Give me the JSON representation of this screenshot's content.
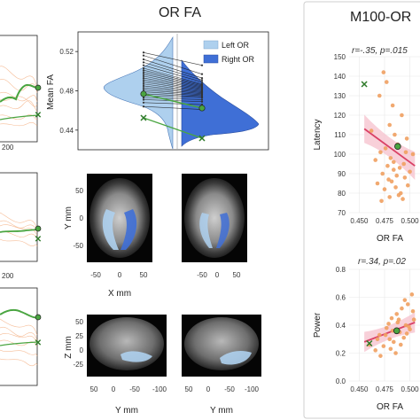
{
  "colors": {
    "left_or": "#aed0ee",
    "right_or": "#3f6fd6",
    "subject_line": "#f2a06a",
    "group_green": "#4aa541",
    "regression": "#d94066",
    "ci_band": "#f6c4d0",
    "point": "#f0a060",
    "grid": "#e8e8e8"
  },
  "left_column": {
    "tick_labels": [
      "200",
      "200"
    ]
  },
  "or_fa_panel": {
    "title": "OR FA",
    "ylabel": "Mean FA",
    "legend": [
      "Left OR",
      "Right OR"
    ],
    "axial_xlabel": "X mm",
    "axial_ylabel": "Y mm",
    "sagittal_xlabel": "Y mm",
    "sagittal_ylabel": "Z mm",
    "axial_ticks_x": [
      "-50",
      "0",
      "50",
      "-50",
      "0",
      "50"
    ],
    "axial_ticks_y": [
      "50",
      "0",
      "-50"
    ],
    "sagittal_ticks_x": [
      "50",
      "0",
      "-50",
      "-100",
      "50",
      "0",
      "-50",
      "-100"
    ],
    "sagittal_ticks_y": [
      "50",
      "25",
      "0",
      "-25"
    ]
  },
  "m100_panel": {
    "title": "M100-OR",
    "top_stat": "r=-.35, p=.015",
    "bottom_stat": "r=.34, p=.02",
    "top_ylabel": "Latency",
    "bottom_ylabel": "Power",
    "xlabel": "OR FA"
  },
  "chart_data": [
    {
      "type": "area",
      "title": "OR FA",
      "ylabel": "Mean FA",
      "ylim": [
        0.42,
        0.54
      ],
      "yticks": [
        0.44,
        0.48,
        0.52
      ],
      "series": [
        {
          "name": "Left OR",
          "values": [
            0.519,
            0.516,
            0.512,
            0.509,
            0.506,
            0.503,
            0.501,
            0.499,
            0.497,
            0.495,
            0.493,
            0.491,
            0.489,
            0.487,
            0.485,
            0.483,
            0.481,
            0.479,
            0.477,
            0.475,
            0.473,
            0.471,
            0.468,
            0.464
          ]
        },
        {
          "name": "Right OR",
          "values": [
            0.506,
            0.497,
            0.493,
            0.491,
            0.489,
            0.487,
            0.486,
            0.485,
            0.484,
            0.483,
            0.482,
            0.481,
            0.48,
            0.479,
            0.478,
            0.477,
            0.476,
            0.475,
            0.474,
            0.473,
            0.471,
            0.469,
            0.466,
            0.461
          ]
        }
      ],
      "green_markers": {
        "circle": [
          0.49,
          0.474
        ],
        "cross": [
          0.465,
          0.445
        ]
      },
      "legend": "top-right"
    },
    {
      "type": "scatter",
      "title": "M100-OR",
      "annotation": "r=-.35, p=.015",
      "xlabel": "OR FA",
      "ylabel": "Latency",
      "xlim": [
        0.44,
        0.51
      ],
      "ylim": [
        70,
        150
      ],
      "xticks": [
        0.45,
        0.475,
        0.5
      ],
      "yticks": [
        70,
        80,
        90,
        100,
        110,
        120,
        130,
        140,
        150
      ],
      "x": [
        0.474,
        0.477,
        0.47,
        0.483,
        0.492,
        0.48,
        0.462,
        0.485,
        0.497,
        0.488,
        0.476,
        0.471,
        0.503,
        0.481,
        0.466,
        0.494,
        0.478,
        0.49,
        0.484,
        0.5,
        0.473,
        0.487,
        0.495,
        0.479,
        0.482,
        0.468,
        0.498,
        0.486,
        0.475,
        0.491,
        0.489,
        0.48,
        0.493,
        0.472,
        0.496,
        0.484
      ],
      "y": [
        142,
        137,
        130,
        125,
        120,
        115,
        112,
        110,
        108,
        105,
        103,
        101,
        100,
        98,
        97,
        95,
        94,
        93,
        92,
        91,
        90,
        89,
        88,
        87,
        86,
        85,
        84,
        83,
        82,
        80,
        79,
        78,
        77,
        76,
        101,
        96
      ],
      "highlight": {
        "circle": [
          0.488,
          104
        ],
        "cross": [
          0.455,
          136
        ]
      },
      "regression": {
        "x": [
          0.455,
          0.505
        ],
        "y": [
          113,
          94
        ]
      }
    },
    {
      "type": "scatter",
      "annotation": "r=.34, p=.02",
      "xlabel": "OR FA",
      "ylabel": "Power",
      "xlim": [
        0.44,
        0.51
      ],
      "ylim": [
        0,
        0.8
      ],
      "xticks": [
        0.45,
        0.475,
        0.5
      ],
      "yticks": [
        0,
        0.2,
        0.4,
        0.6,
        0.8
      ],
      "x": [
        0.46,
        0.466,
        0.47,
        0.474,
        0.477,
        0.48,
        0.482,
        0.484,
        0.486,
        0.488,
        0.49,
        0.492,
        0.494,
        0.496,
        0.498,
        0.5,
        0.502,
        0.504,
        0.471,
        0.476,
        0.479,
        0.483,
        0.487,
        0.491,
        0.495,
        0.499,
        0.503,
        0.468,
        0.481,
        0.489,
        0.497
      ],
      "y": [
        0.26,
        0.22,
        0.33,
        0.25,
        0.38,
        0.3,
        0.45,
        0.28,
        0.2,
        0.42,
        0.35,
        0.52,
        0.31,
        0.4,
        0.55,
        0.37,
        0.62,
        0.44,
        0.18,
        0.33,
        0.41,
        0.36,
        0.48,
        0.26,
        0.58,
        0.39,
        0.5,
        0.3,
        0.23,
        0.44,
        0.34
      ],
      "highlight": {
        "circle": [
          0.487,
          0.36
        ],
        "cross": [
          0.46,
          0.27
        ]
      },
      "regression": {
        "x": [
          0.455,
          0.505
        ],
        "y": [
          0.28,
          0.42
        ]
      }
    }
  ]
}
